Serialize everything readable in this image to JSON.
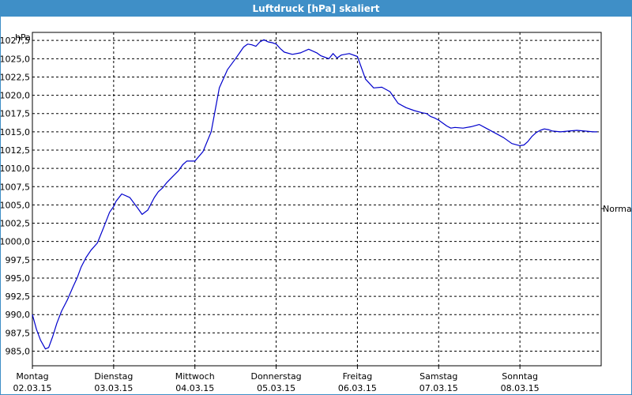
{
  "window": {
    "title": "Luftdruck [hPa] skaliert"
  },
  "chart_data": {
    "type": "line",
    "title": "Luftdruck [hPa] skaliert",
    "ylabel": "hPa",
    "ylim": [
      983.0,
      1028.6
    ],
    "xlim": [
      0,
      7.0
    ],
    "y_ticks": [
      "985,0",
      "987,5",
      "990,0",
      "992,5",
      "995,0",
      "997,5",
      "1000,0",
      "1002,5",
      "1005,0",
      "1007,5",
      "1010,0",
      "1012,5",
      "1015,0",
      "1017,5",
      "1020,0",
      "1022,5",
      "1025,0",
      "1027,5"
    ],
    "y_tick_values": [
      985.0,
      987.5,
      990.0,
      992.5,
      995.0,
      997.5,
      1000.0,
      1002.5,
      1005.0,
      1007.5,
      1010.0,
      1012.5,
      1015.0,
      1017.5,
      1020.0,
      1022.5,
      1025.0,
      1027.5
    ],
    "x_ticks": [
      {
        "day": "Montag",
        "date": "02.03.15"
      },
      {
        "day": "Dienstag",
        "date": "03.03.15"
      },
      {
        "day": "Mittwoch",
        "date": "04.03.15"
      },
      {
        "day": "Donnerstag",
        "date": "05.03.15"
      },
      {
        "day": "Freitag",
        "date": "06.03.15"
      },
      {
        "day": "Samstag",
        "date": "07.03.15"
      },
      {
        "day": "Sonntag",
        "date": "08.03.15"
      }
    ],
    "grid": true,
    "reference_line": {
      "label": "Normal",
      "value": 1004.5
    },
    "series": [
      {
        "color": "#0000cc",
        "x": [
          0.0,
          0.05,
          0.1,
          0.16,
          0.2,
          0.25,
          0.3,
          0.36,
          0.43,
          0.5,
          0.55,
          0.6,
          0.66,
          0.72,
          0.8,
          0.88,
          0.95,
          1.0,
          1.03,
          1.1,
          1.2,
          1.3,
          1.35,
          1.42,
          1.5,
          1.55,
          1.6,
          1.65,
          1.72,
          1.8,
          1.85,
          1.9,
          2.0,
          2.1,
          2.2,
          2.3,
          2.4,
          2.5,
          2.55,
          2.6,
          2.65,
          2.7,
          2.75,
          2.8,
          2.85,
          2.9,
          2.95,
          3.0,
          3.05,
          3.1,
          3.2,
          3.3,
          3.4,
          3.5,
          3.55,
          3.6,
          3.65,
          3.7,
          3.75,
          3.8,
          3.9,
          4.0,
          4.1,
          4.2,
          4.3,
          4.4,
          4.5,
          4.6,
          4.7,
          4.8,
          4.85,
          4.9,
          4.95,
          5.0,
          5.1,
          5.15,
          5.2,
          5.3,
          5.4,
          5.5,
          5.6,
          5.7,
          5.8,
          5.9,
          6.0,
          6.05,
          6.1,
          6.15,
          6.2,
          6.25,
          6.3,
          6.35,
          6.4,
          6.5,
          6.6,
          6.7,
          6.8,
          6.9,
          6.95
        ],
        "y": [
          990.0,
          988.0,
          986.5,
          985.3,
          985.5,
          987.0,
          988.8,
          990.5,
          992.0,
          993.8,
          995.0,
          996.5,
          997.8,
          998.8,
          999.8,
          1002.0,
          1004.0,
          1004.8,
          1005.5,
          1006.5,
          1006.0,
          1004.5,
          1003.7,
          1004.3,
          1006.0,
          1006.8,
          1007.3,
          1008.0,
          1008.8,
          1009.7,
          1010.5,
          1011.0,
          1011.0,
          1012.3,
          1015.0,
          1021.0,
          1023.5,
          1025.0,
          1025.8,
          1026.6,
          1027.0,
          1026.9,
          1026.7,
          1027.3,
          1027.6,
          1027.3,
          1027.2,
          1027.0,
          1026.4,
          1025.9,
          1025.6,
          1025.8,
          1026.3,
          1025.8,
          1025.4,
          1025.2,
          1025.0,
          1025.7,
          1025.1,
          1025.5,
          1025.7,
          1025.3,
          1022.2,
          1021.0,
          1021.1,
          1020.5,
          1018.9,
          1018.3,
          1017.9,
          1017.6,
          1017.5,
          1017.1,
          1016.9,
          1016.6,
          1015.8,
          1015.5,
          1015.6,
          1015.5,
          1015.7,
          1016.0,
          1015.4,
          1014.8,
          1014.2,
          1013.4,
          1013.1,
          1013.2,
          1013.7,
          1014.4,
          1014.9,
          1015.2,
          1015.4,
          1015.3,
          1015.1,
          1015.0,
          1015.1,
          1015.2,
          1015.1,
          1015.0,
          1015.0
        ]
      }
    ]
  }
}
